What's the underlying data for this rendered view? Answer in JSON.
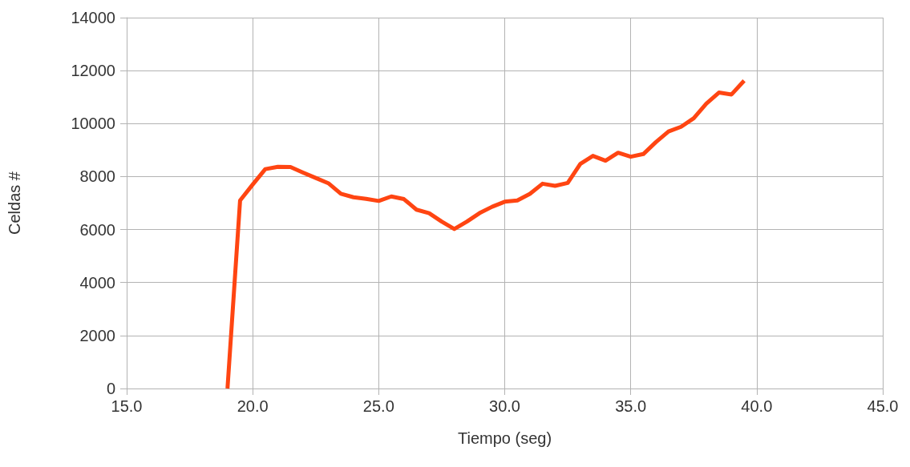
{
  "chart_data": {
    "type": "line",
    "xlabel": "Tiempo (seg)",
    "ylabel": "Celdas #",
    "x": [
      19.0,
      19.5,
      20.0,
      20.5,
      21.0,
      21.5,
      22.0,
      22.5,
      23.0,
      23.5,
      24.0,
      24.5,
      25.0,
      25.5,
      26.0,
      26.5,
      27.0,
      27.5,
      28.0,
      28.5,
      29.0,
      29.5,
      30.0,
      30.5,
      31.0,
      31.5,
      32.0,
      32.5,
      33.0,
      33.5,
      34.0,
      34.5,
      35.0,
      35.5,
      36.0,
      36.5,
      37.0,
      37.5,
      38.0,
      38.5,
      39.0,
      39.5
    ],
    "series": [
      {
        "color": "#ff4512",
        "values": [
          0,
          7100,
          7700,
          8280,
          8370,
          8360,
          8150,
          7950,
          7750,
          7350,
          7220,
          7160,
          7080,
          7250,
          7150,
          6750,
          6620,
          6300,
          6020,
          6300,
          6620,
          6860,
          7050,
          7100,
          7350,
          7730,
          7650,
          7760,
          8480,
          8780,
          8600,
          8900,
          8750,
          8850,
          9300,
          9700,
          9880,
          10200,
          10750,
          11170,
          11100,
          11620
        ]
      }
    ],
    "xlim": [
      15,
      45
    ],
    "xticks": [
      {
        "value": 15,
        "label": "15.0"
      },
      {
        "value": 20,
        "label": "20.0"
      },
      {
        "value": 25,
        "label": "25.0"
      },
      {
        "value": 30,
        "label": "30.0"
      },
      {
        "value": 35,
        "label": "35.0"
      },
      {
        "value": 40,
        "label": "40.0"
      },
      {
        "value": 45,
        "label": "45.0"
      }
    ],
    "ylim": [
      0,
      14000
    ],
    "yticks": [
      0,
      2000,
      4000,
      6000,
      8000,
      10000,
      12000,
      14000
    ],
    "grid": true,
    "marker": "none",
    "line_style": "solid"
  }
}
